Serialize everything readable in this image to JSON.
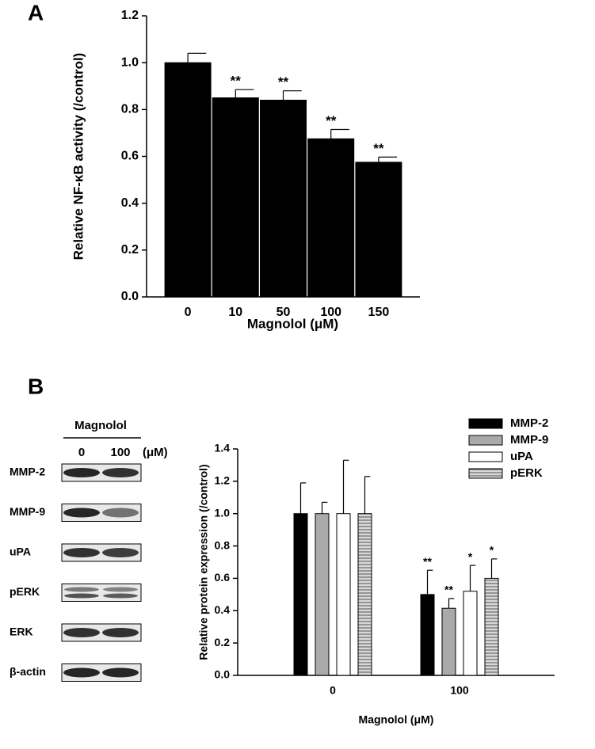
{
  "panels": [
    "A",
    "B"
  ],
  "blot": {
    "header": "Magnolol",
    "lanes": [
      "0",
      "100"
    ],
    "unit": "(μM)",
    "rows": [
      "MMP-2",
      "MMP-9",
      "uPA",
      "pERK",
      "ERK",
      "β-actin"
    ]
  },
  "chart_data": [
    {
      "type": "bar",
      "ylabel": "Relative NF-κB activity (/control)",
      "xlabel": "Magnolol (μM)",
      "categories": [
        "0",
        "10",
        "50",
        "100",
        "150"
      ],
      "values": [
        1.0,
        0.85,
        0.84,
        0.675,
        0.575
      ],
      "errors": [
        0.04,
        0.035,
        0.04,
        0.04,
        0.022
      ],
      "annotations": [
        null,
        "**",
        "**",
        "**",
        "**"
      ],
      "color": "#000000",
      "ylim": [
        0,
        1.2
      ],
      "yticks": [
        {
          "value": 0,
          "label": "0.0"
        },
        0.2,
        0.4,
        0.6,
        0.8,
        {
          "value": 1,
          "label": "1.0"
        },
        1.2
      ]
    },
    {
      "type": "bar",
      "ylabel": "Relative protein expression (/control)",
      "xlabel": "Magnolol (μM)",
      "categories": [
        "0",
        "100"
      ],
      "series": [
        {
          "name": "MMP-2",
          "color": "#000000",
          "values": [
            1.0,
            0.5
          ],
          "errors": [
            0.19,
            0.15
          ],
          "annotations": [
            null,
            "**"
          ]
        },
        {
          "name": "MMP-9",
          "color": "#aaaaaa",
          "values": [
            1.0,
            0.415
          ],
          "errors": [
            0.07,
            0.06
          ],
          "annotations": [
            null,
            "**"
          ]
        },
        {
          "name": "uPA",
          "color": "#ffffff",
          "values": [
            1.0,
            0.52
          ],
          "errors": [
            0.33,
            0.16
          ],
          "annotations": [
            null,
            "*"
          ]
        },
        {
          "name": "pERK",
          "color": "#999999",
          "pattern": "hlines",
          "values": [
            1.0,
            0.6
          ],
          "errors": [
            0.23,
            0.12
          ],
          "annotations": [
            null,
            "*"
          ]
        }
      ],
      "legend": "upper right",
      "ylim": [
        0,
        1.4
      ],
      "yticks": [
        {
          "value": 0,
          "label": "0.0"
        },
        0.2,
        0.4,
        0.6,
        0.8,
        {
          "value": 1,
          "label": "1.0"
        },
        1.2,
        1.4
      ]
    }
  ]
}
